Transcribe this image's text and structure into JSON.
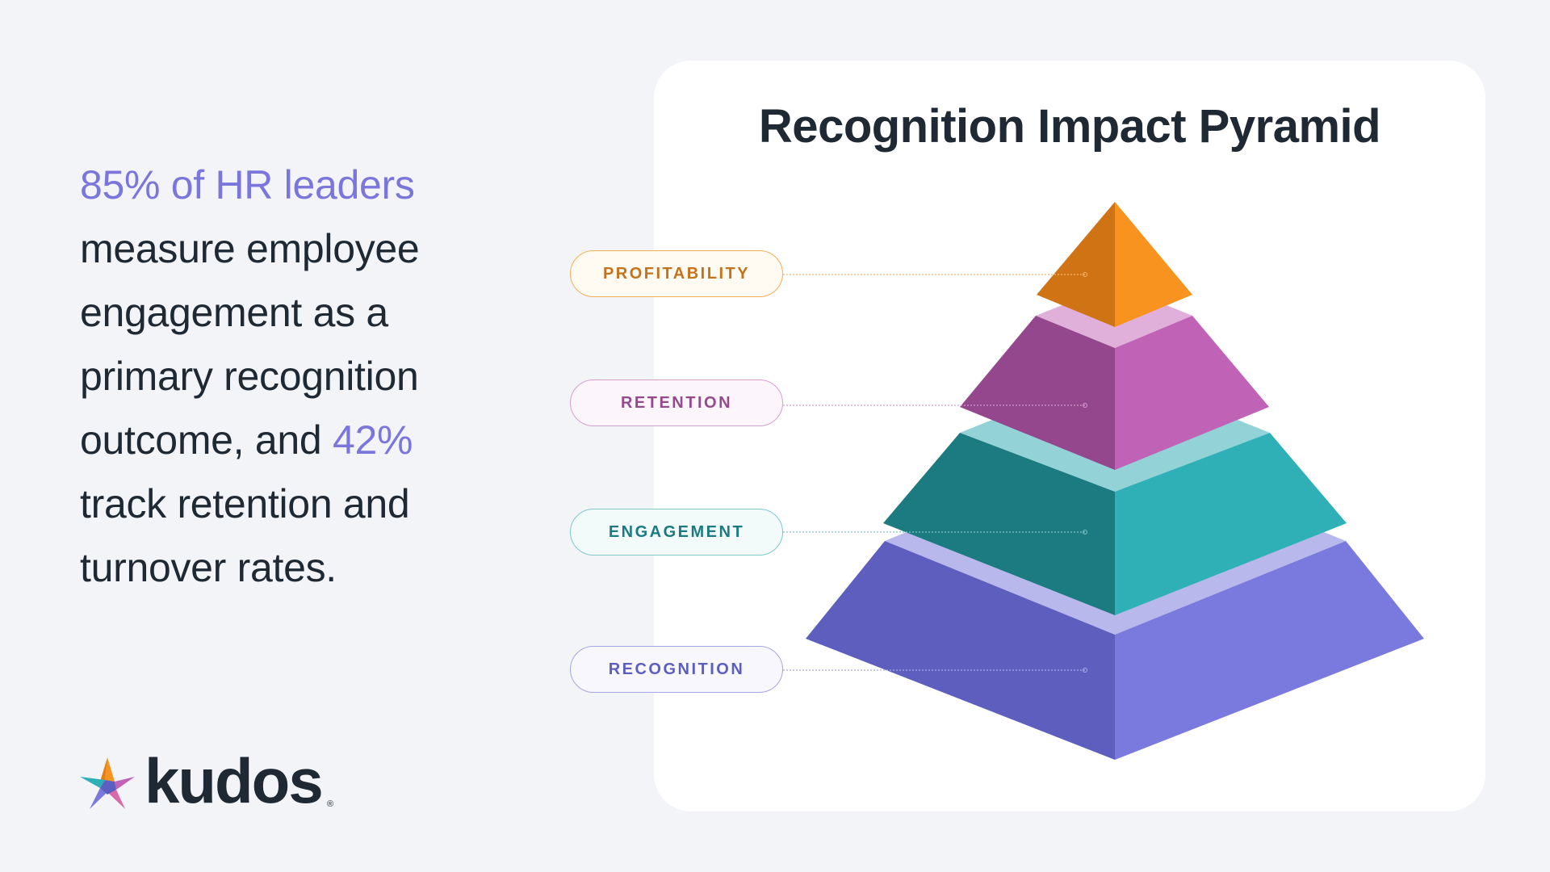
{
  "stat": {
    "highlight1": "85% of HR leaders",
    "text1": " measure employee engagement as a primary recognition outcome, and ",
    "highlight2": "42%",
    "text2": " track retention and turnover rates."
  },
  "logo": {
    "word": "kudos",
    "registered": "®"
  },
  "pyramid": {
    "title": "Recognition Impact Pyramid",
    "levels": [
      {
        "label": "PROFITABILITY",
        "color": "#f7931e"
      },
      {
        "label": "RETENTION",
        "color": "#c062b5"
      },
      {
        "label": "ENGAGEMENT",
        "color": "#2fb0b7"
      },
      {
        "label": "RECOGNITION",
        "color": "#7a79de"
      }
    ]
  },
  "colors": {
    "accent": "#7b76db",
    "background": "#f3f4f8",
    "text": "#1f2933"
  }
}
